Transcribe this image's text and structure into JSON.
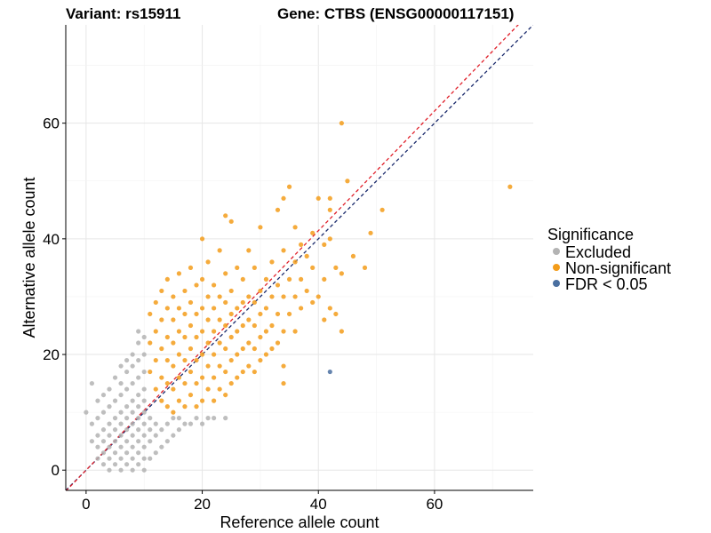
{
  "title_left": "Variant: rs15911",
  "title_right": "Gene: CTBS (ENSG00000117151)",
  "chart_data": {
    "type": "scatter",
    "xlabel": "Reference allele count",
    "ylabel": "Alternative allele count",
    "xlim": [
      -3.5,
      77
    ],
    "ylim": [
      -3.5,
      77
    ],
    "xticks": [
      0,
      20,
      40,
      60
    ],
    "yticks": [
      0,
      20,
      40,
      60
    ],
    "grid": true,
    "legend": {
      "title": "Significance",
      "position": "right",
      "entries": [
        {
          "label": "Excluded",
          "color": "#b3b3b3"
        },
        {
          "label": "Non-significant",
          "color": "#f39c1a"
        },
        {
          "label": "FDR < 0.05",
          "color": "#4a6fa0"
        }
      ]
    },
    "reference_lines": [
      {
        "slope": 1.0,
        "intercept": 0,
        "color": "#1a2a6c",
        "style": "dashed"
      },
      {
        "slope": 1.035,
        "intercept": 0,
        "color": "#e0202a",
        "style": "dashed"
      }
    ],
    "series": [
      {
        "name": "Excluded",
        "color": "#b3b3b3",
        "points": [
          [
            0,
            10
          ],
          [
            1,
            5
          ],
          [
            1,
            8
          ],
          [
            1,
            15
          ],
          [
            2,
            2
          ],
          [
            2,
            4
          ],
          [
            2,
            6
          ],
          [
            2,
            9
          ],
          [
            2,
            12
          ],
          [
            3,
            1
          ],
          [
            3,
            3
          ],
          [
            3,
            5
          ],
          [
            3,
            7
          ],
          [
            3,
            10
          ],
          [
            3,
            13
          ],
          [
            4,
            0
          ],
          [
            4,
            2
          ],
          [
            4,
            4
          ],
          [
            4,
            6
          ],
          [
            4,
            8
          ],
          [
            4,
            11
          ],
          [
            4,
            14
          ],
          [
            5,
            1
          ],
          [
            5,
            3
          ],
          [
            5,
            5
          ],
          [
            5,
            7
          ],
          [
            5,
            9
          ],
          [
            5,
            12
          ],
          [
            5,
            16
          ],
          [
            6,
            0
          ],
          [
            6,
            2
          ],
          [
            6,
            4
          ],
          [
            6,
            6
          ],
          [
            6,
            8
          ],
          [
            6,
            10
          ],
          [
            6,
            13
          ],
          [
            6,
            15
          ],
          [
            6,
            18
          ],
          [
            7,
            1
          ],
          [
            7,
            3
          ],
          [
            7,
            5
          ],
          [
            7,
            7
          ],
          [
            7,
            9
          ],
          [
            7,
            11
          ],
          [
            7,
            14
          ],
          [
            7,
            17
          ],
          [
            7,
            19
          ],
          [
            8,
            0
          ],
          [
            8,
            2
          ],
          [
            8,
            4
          ],
          [
            8,
            6
          ],
          [
            8,
            8
          ],
          [
            8,
            10
          ],
          [
            8,
            12
          ],
          [
            8,
            15
          ],
          [
            8,
            18
          ],
          [
            8,
            20
          ],
          [
            9,
            1
          ],
          [
            9,
            3
          ],
          [
            9,
            5
          ],
          [
            9,
            7
          ],
          [
            9,
            9
          ],
          [
            9,
            11
          ],
          [
            9,
            13
          ],
          [
            9,
            16
          ],
          [
            9,
            19
          ],
          [
            9,
            22
          ],
          [
            9,
            24
          ],
          [
            10,
            0
          ],
          [
            10,
            2
          ],
          [
            10,
            4
          ],
          [
            10,
            6
          ],
          [
            10,
            8
          ],
          [
            10,
            10
          ],
          [
            10,
            12
          ],
          [
            10,
            14
          ],
          [
            10,
            17
          ],
          [
            10,
            20
          ],
          [
            10,
            23
          ],
          [
            11,
            2
          ],
          [
            11,
            5
          ],
          [
            11,
            7
          ],
          [
            11,
            9
          ],
          [
            12,
            3
          ],
          [
            12,
            6
          ],
          [
            12,
            8
          ],
          [
            13,
            4
          ],
          [
            13,
            7
          ],
          [
            14,
            5
          ],
          [
            14,
            8
          ],
          [
            15,
            6
          ],
          [
            15,
            9
          ],
          [
            16,
            7
          ],
          [
            16,
            9
          ],
          [
            17,
            8
          ],
          [
            18,
            8
          ],
          [
            19,
            9
          ],
          [
            20,
            8
          ],
          [
            21,
            9
          ],
          [
            22,
            9
          ],
          [
            24,
            9
          ]
        ]
      },
      {
        "name": "Non-significant",
        "color": "#f39c1a",
        "points": [
          [
            11,
            17
          ],
          [
            11,
            22
          ],
          [
            11,
            27
          ],
          [
            12,
            14
          ],
          [
            12,
            19
          ],
          [
            12,
            24
          ],
          [
            12,
            29
          ],
          [
            13,
            12
          ],
          [
            13,
            16
          ],
          [
            13,
            21
          ],
          [
            13,
            26
          ],
          [
            13,
            31
          ],
          [
            14,
            11
          ],
          [
            14,
            15
          ],
          [
            14,
            19
          ],
          [
            14,
            23
          ],
          [
            14,
            28
          ],
          [
            14,
            33
          ],
          [
            15,
            10
          ],
          [
            15,
            14
          ],
          [
            15,
            18
          ],
          [
            15,
            22
          ],
          [
            15,
            26
          ],
          [
            15,
            30
          ],
          [
            16,
            12
          ],
          [
            16,
            16
          ],
          [
            16,
            20
          ],
          [
            16,
            24
          ],
          [
            16,
            28
          ],
          [
            16,
            34
          ],
          [
            17,
            11
          ],
          [
            17,
            15
          ],
          [
            17,
            19
          ],
          [
            17,
            23
          ],
          [
            17,
            27
          ],
          [
            17,
            31
          ],
          [
            18,
            13
          ],
          [
            18,
            17
          ],
          [
            18,
            21
          ],
          [
            18,
            25
          ],
          [
            18,
            29
          ],
          [
            18,
            35
          ],
          [
            19,
            11
          ],
          [
            19,
            15
          ],
          [
            19,
            19
          ],
          [
            19,
            23
          ],
          [
            19,
            27
          ],
          [
            19,
            32
          ],
          [
            20,
            12
          ],
          [
            20,
            16
          ],
          [
            20,
            20
          ],
          [
            20,
            24
          ],
          [
            20,
            28
          ],
          [
            20,
            33
          ],
          [
            20,
            40
          ],
          [
            21,
            14
          ],
          [
            21,
            18
          ],
          [
            21,
            22
          ],
          [
            21,
            26
          ],
          [
            21,
            30
          ],
          [
            21,
            36
          ],
          [
            22,
            12
          ],
          [
            22,
            16
          ],
          [
            22,
            20
          ],
          [
            22,
            24
          ],
          [
            22,
            28
          ],
          [
            22,
            32
          ],
          [
            23,
            14
          ],
          [
            23,
            18
          ],
          [
            23,
            22
          ],
          [
            23,
            26
          ],
          [
            23,
            30
          ],
          [
            23,
            38
          ],
          [
            24,
            13
          ],
          [
            24,
            17
          ],
          [
            24,
            21
          ],
          [
            24,
            25
          ],
          [
            24,
            29
          ],
          [
            24,
            34
          ],
          [
            24,
            44
          ],
          [
            25,
            15
          ],
          [
            25,
            19
          ],
          [
            25,
            23
          ],
          [
            25,
            27
          ],
          [
            25,
            31
          ],
          [
            25,
            43
          ],
          [
            26,
            16
          ],
          [
            26,
            20
          ],
          [
            26,
            24
          ],
          [
            26,
            28
          ],
          [
            26,
            35
          ],
          [
            27,
            17
          ],
          [
            27,
            21
          ],
          [
            27,
            25
          ],
          [
            27,
            29
          ],
          [
            27,
            33
          ],
          [
            28,
            18
          ],
          [
            28,
            22
          ],
          [
            28,
            26
          ],
          [
            28,
            30
          ],
          [
            28,
            38
          ],
          [
            29,
            17
          ],
          [
            29,
            21
          ],
          [
            29,
            25
          ],
          [
            29,
            29
          ],
          [
            29,
            35
          ],
          [
            30,
            19
          ],
          [
            30,
            23
          ],
          [
            30,
            27
          ],
          [
            30,
            31
          ],
          [
            30,
            42
          ],
          [
            31,
            20
          ],
          [
            31,
            24
          ],
          [
            31,
            28
          ],
          [
            31,
            33
          ],
          [
            32,
            21
          ],
          [
            32,
            25
          ],
          [
            32,
            30
          ],
          [
            32,
            36
          ],
          [
            33,
            22
          ],
          [
            33,
            27
          ],
          [
            33,
            32
          ],
          [
            33,
            45
          ],
          [
            34,
            15
          ],
          [
            34,
            18
          ],
          [
            34,
            24
          ],
          [
            34,
            30
          ],
          [
            34,
            38
          ],
          [
            34,
            47
          ],
          [
            35,
            27
          ],
          [
            35,
            33
          ],
          [
            35,
            49
          ],
          [
            36,
            24
          ],
          [
            36,
            30
          ],
          [
            36,
            36
          ],
          [
            36,
            42
          ],
          [
            37,
            28
          ],
          [
            37,
            33
          ],
          [
            37,
            39
          ],
          [
            38,
            31
          ],
          [
            38,
            37
          ],
          [
            39,
            29
          ],
          [
            39,
            35
          ],
          [
            39,
            41
          ],
          [
            40,
            30
          ],
          [
            40,
            47
          ],
          [
            41,
            26
          ],
          [
            41,
            33
          ],
          [
            41,
            39
          ],
          [
            42,
            28
          ],
          [
            42,
            40
          ],
          [
            42,
            45
          ],
          [
            42,
            47
          ],
          [
            43,
            27
          ],
          [
            43,
            35
          ],
          [
            44,
            24
          ],
          [
            44,
            34
          ],
          [
            45,
            50
          ],
          [
            46,
            37
          ],
          [
            48,
            35
          ],
          [
            49,
            41
          ],
          [
            51,
            45
          ],
          [
            44,
            60
          ],
          [
            73,
            49
          ]
        ]
      },
      {
        "name": "FDR < 0.05",
        "color": "#4a6fa0",
        "points": [
          [
            42,
            17
          ]
        ]
      }
    ]
  }
}
